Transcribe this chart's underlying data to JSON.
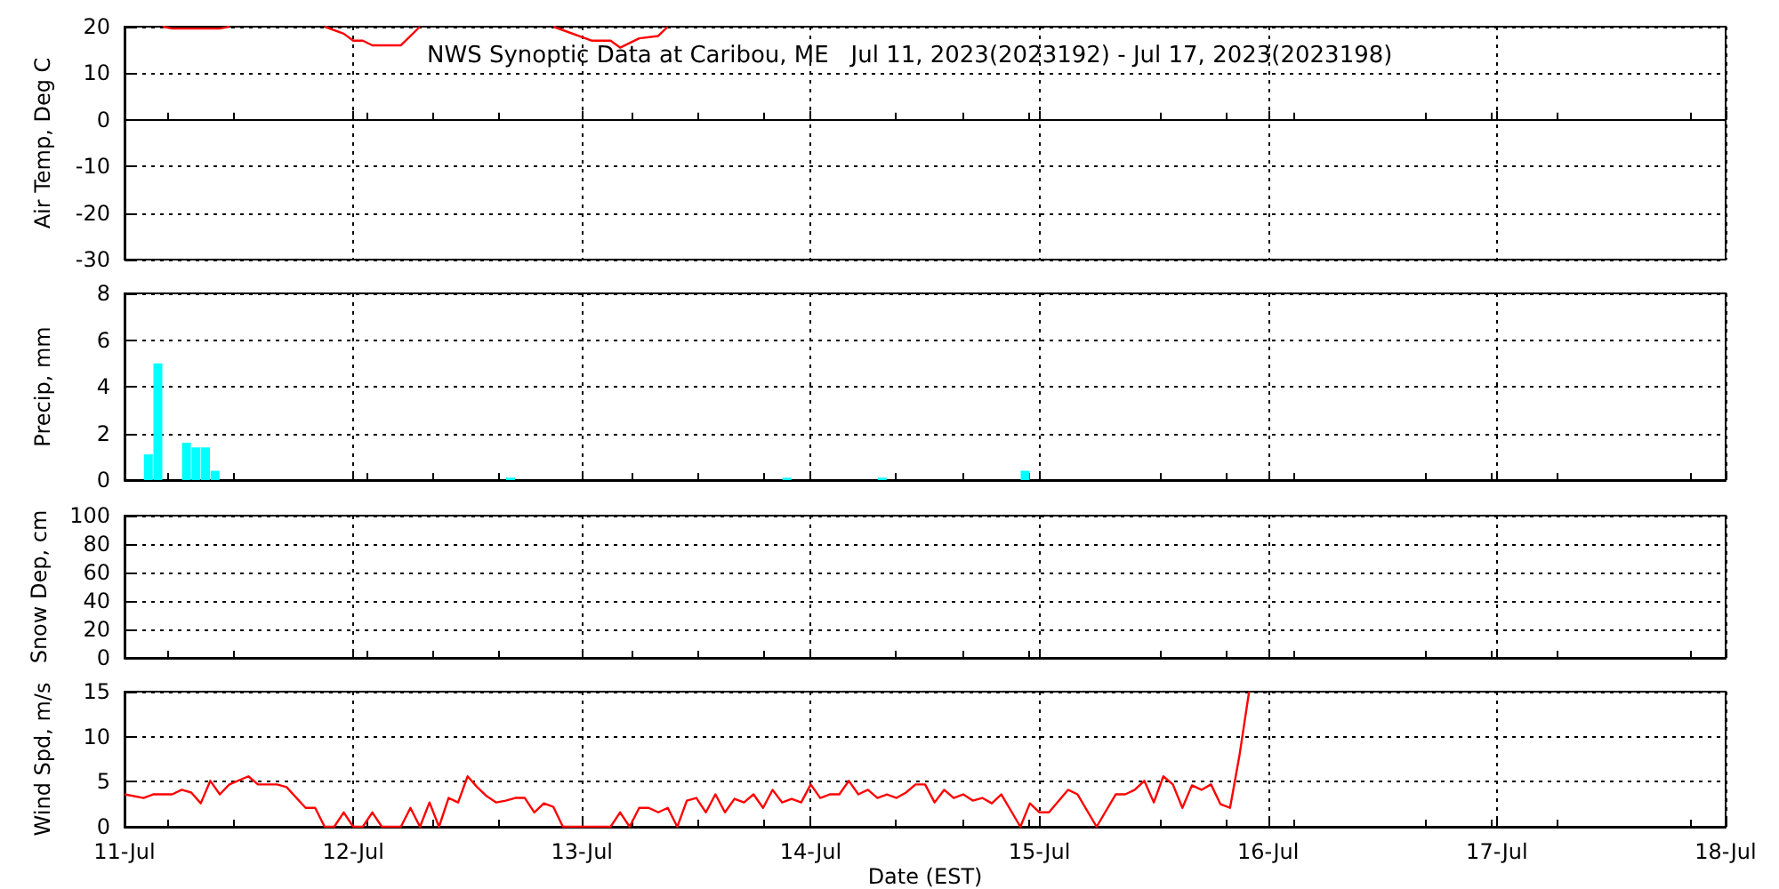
{
  "chart_data": [
    {
      "type": "line",
      "title": "NWS Synoptic Data at Caribou, ME   Jul 11, 2023(2023192) - Jul 17, 2023(2023198)",
      "ylabel": "Air Temp, Deg C",
      "ylim": [
        -30,
        20
      ],
      "yticks": [
        -30,
        -20,
        -10,
        0,
        10,
        20
      ],
      "xlim": [
        "2023-07-11",
        "2023-07-18"
      ],
      "xticks": [
        {
          "value": "2023-07-11",
          "label": null
        },
        {
          "value": "2023-07-12",
          "label": null
        },
        {
          "value": "2023-07-13",
          "label": null
        },
        {
          "value": "2023-07-14",
          "label": null
        },
        {
          "value": "2023-07-15",
          "label": null
        },
        {
          "value": "2023-07-16",
          "label": null
        },
        {
          "value": "2023-07-17",
          "label": null
        },
        {
          "value": "2023-07-18",
          "label": null
        }
      ],
      "grid": true,
      "tick_labels": "y",
      "series": [
        {
          "color": "#ff0000",
          "x": [
            "2023-07-11T04:00",
            "2023-07-11T05:00",
            "2023-07-11T10:00",
            "2023-07-11T11:00",
            "2023-07-11T16:00",
            "2023-07-11T21:00",
            "2023-07-11T23:00",
            "2023-07-12T00:00",
            "2023-07-12T01:00",
            "2023-07-12T02:00",
            "2023-07-12T05:00",
            "2023-07-12T07:00",
            "2023-07-12T14:00",
            "2023-07-12T21:00",
            "2023-07-13T01:00",
            "2023-07-13T03:00",
            "2023-07-13T04:00",
            "2023-07-13T06:00",
            "2023-07-13T08:00",
            "2023-07-13T09:00"
          ],
          "values": [
            20,
            19.6,
            19.6,
            20,
            null,
            20,
            18.5,
            17,
            17,
            16,
            16,
            20,
            null,
            20,
            17,
            17,
            15.5,
            17.5,
            18,
            20
          ]
        }
      ]
    },
    {
      "type": "bar",
      "ylabel": "Precip, mm",
      "ylim": [
        0,
        8
      ],
      "yticks": [
        0,
        2,
        4,
        6,
        8
      ],
      "xlim": [
        "2023-07-11",
        "2023-07-18"
      ],
      "xticks": [
        {
          "value": "2023-07-11",
          "label": null
        },
        {
          "value": "2023-07-12",
          "label": null
        },
        {
          "value": "2023-07-13",
          "label": null
        },
        {
          "value": "2023-07-14",
          "label": null
        },
        {
          "value": "2023-07-15",
          "label": null
        },
        {
          "value": "2023-07-16",
          "label": null
        },
        {
          "value": "2023-07-17",
          "label": null
        },
        {
          "value": "2023-07-18",
          "label": null
        }
      ],
      "grid": true,
      "tick_labels": "y",
      "series": [
        {
          "color": "#00ffff",
          "x": [
            "2023-07-11T02:30",
            "2023-07-11T03:30",
            "2023-07-11T06:30",
            "2023-07-11T07:30",
            "2023-07-11T08:30",
            "2023-07-11T09:30",
            "2023-07-12T16:30",
            "2023-07-13T21:30",
            "2023-07-14T07:30",
            "2023-07-14T21:30",
            "2023-07-14T22:30"
          ],
          "values": [
            1.1,
            5.0,
            1.6,
            1.4,
            1.4,
            0.4,
            0.1,
            0.1,
            0.1,
            null,
            0.4
          ]
        }
      ]
    },
    {
      "type": "line",
      "ylabel": "Snow Dep, cm",
      "ylim": [
        0,
        100
      ],
      "yticks": [
        0,
        20,
        40,
        60,
        80,
        100
      ],
      "xlim": [
        "2023-07-11",
        "2023-07-18"
      ],
      "xticks": [
        {
          "value": "2023-07-11",
          "label": null
        },
        {
          "value": "2023-07-12",
          "label": null
        },
        {
          "value": "2023-07-13",
          "label": null
        },
        {
          "value": "2023-07-14",
          "label": null
        },
        {
          "value": "2023-07-15",
          "label": null
        },
        {
          "value": "2023-07-16",
          "label": null
        },
        {
          "value": "2023-07-17",
          "label": null
        },
        {
          "value": "2023-07-18",
          "label": null
        }
      ],
      "grid": true,
      "tick_labels": "y"
    },
    {
      "type": "line",
      "ylabel": "Wind Spd, m/s",
      "xlabel": "Date (EST)",
      "ylim": [
        0,
        15
      ],
      "yticks": [
        0,
        5,
        10,
        15
      ],
      "xlim": [
        "2023-07-11",
        "2023-07-18"
      ],
      "xticks": [
        {
          "value": "2023-07-11",
          "label": "11-Jul"
        },
        {
          "value": "2023-07-12",
          "label": "12-Jul"
        },
        {
          "value": "2023-07-13",
          "label": "13-Jul"
        },
        {
          "value": "2023-07-14",
          "label": "14-Jul"
        },
        {
          "value": "2023-07-15",
          "label": "15-Jul"
        },
        {
          "value": "2023-07-16",
          "label": "16-Jul"
        },
        {
          "value": "2023-07-17",
          "label": "17-Jul"
        },
        {
          "value": "2023-07-18",
          "label": "18-Jul"
        }
      ],
      "grid": true,
      "series": [
        {
          "color": "#ff0000",
          "x": [
            "2023-07-11T00:00",
            "2023-07-11T02:00",
            "2023-07-11T03:00",
            "2023-07-11T05:00",
            "2023-07-11T06:00",
            "2023-07-11T07:00",
            "2023-07-11T08:00",
            "2023-07-11T09:00",
            "2023-07-11T10:00",
            "2023-07-11T11:00",
            "2023-07-11T13:00",
            "2023-07-11T14:00",
            "2023-07-11T16:00",
            "2023-07-11T17:00",
            "2023-07-11T19:00",
            "2023-07-11T20:00",
            "2023-07-11T21:00",
            "2023-07-11T22:00",
            "2023-07-11T23:00",
            "2023-07-12T00:00",
            "2023-07-12T01:00",
            "2023-07-12T02:00",
            "2023-07-12T03:00",
            "2023-07-12T05:00",
            "2023-07-12T06:00",
            "2023-07-12T07:00",
            "2023-07-12T08:00",
            "2023-07-12T09:00",
            "2023-07-12T10:00",
            "2023-07-12T11:00",
            "2023-07-12T12:00",
            "2023-07-12T13:00",
            "2023-07-12T14:00",
            "2023-07-12T15:00",
            "2023-07-12T16:00",
            "2023-07-12T17:00",
            "2023-07-12T18:00",
            "2023-07-12T19:00",
            "2023-07-12T20:00",
            "2023-07-12T21:00",
            "2023-07-12T22:00",
            "2023-07-13T00:00",
            "2023-07-13T03:00",
            "2023-07-13T04:00",
            "2023-07-13T05:00",
            "2023-07-13T06:00",
            "2023-07-13T07:00",
            "2023-07-13T08:00",
            "2023-07-13T09:00",
            "2023-07-13T10:00",
            "2023-07-13T11:00",
            "2023-07-13T12:00",
            "2023-07-13T13:00",
            "2023-07-13T14:00",
            "2023-07-13T15:00",
            "2023-07-13T16:00",
            "2023-07-13T17:00",
            "2023-07-13T18:00",
            "2023-07-13T19:00",
            "2023-07-13T20:00",
            "2023-07-13T21:00",
            "2023-07-13T22:00",
            "2023-07-13T23:00",
            "2023-07-14T00:00",
            "2023-07-14T01:00",
            "2023-07-14T02:00",
            "2023-07-14T03:00",
            "2023-07-14T04:00",
            "2023-07-14T05:00",
            "2023-07-14T06:00",
            "2023-07-14T07:00",
            "2023-07-14T08:00",
            "2023-07-14T09:00",
            "2023-07-14T10:00",
            "2023-07-14T11:00",
            "2023-07-14T12:00",
            "2023-07-14T13:00",
            "2023-07-14T14:00",
            "2023-07-14T15:00",
            "2023-07-14T16:00",
            "2023-07-14T17:00",
            "2023-07-14T18:00",
            "2023-07-14T19:00",
            "2023-07-14T20:00",
            "2023-07-14T21:00",
            "2023-07-14T22:00",
            "2023-07-14T23:00",
            "2023-07-15T00:00",
            "2023-07-15T01:00",
            "2023-07-15T03:00",
            "2023-07-15T04:00",
            "2023-07-15T06:00",
            "2023-07-15T08:00",
            "2023-07-15T09:00",
            "2023-07-15T10:00",
            "2023-07-15T11:00",
            "2023-07-15T12:00",
            "2023-07-15T13:00",
            "2023-07-15T14:00",
            "2023-07-15T15:00",
            "2023-07-15T16:00",
            "2023-07-15T17:00",
            "2023-07-15T18:00",
            "2023-07-15T19:00",
            "2023-07-15T20:00",
            "2023-07-15T21:00",
            "2023-07-15T22:00"
          ],
          "values": [
            3.6,
            3.2,
            3.6,
            3.6,
            4.1,
            3.8,
            2.6,
            5.1,
            3.6,
            4.7,
            5.6,
            4.7,
            4.7,
            4.4,
            2.1,
            2.1,
            0,
            0,
            1.6,
            0,
            0,
            1.6,
            0,
            0,
            2.1,
            0,
            2.7,
            0,
            3.2,
            2.7,
            5.6,
            4.4,
            3.4,
            2.7,
            2.9,
            3.2,
            3.2,
            1.6,
            2.6,
            2.2,
            0,
            0,
            0,
            1.6,
            0,
            2.1,
            2.1,
            1.6,
            2.1,
            0,
            2.9,
            3.2,
            1.6,
            3.6,
            1.6,
            3.1,
            2.7,
            3.6,
            2.1,
            4.1,
            2.7,
            3.1,
            2.7,
            4.7,
            3.2,
            3.6,
            3.6,
            5.1,
            3.6,
            4.1,
            3.2,
            3.6,
            3.2,
            3.8,
            4.7,
            4.7,
            2.7,
            4.1,
            3.2,
            3.6,
            2.9,
            3.2,
            2.6,
            3.6,
            1.8,
            0,
            2.6,
            1.6,
            1.6,
            4.1,
            3.6,
            0,
            3.6,
            3.6,
            4.1,
            5.1,
            2.7,
            5.6,
            4.7,
            2.1,
            4.6,
            4.1,
            4.7,
            2.5,
            2.1,
            8,
            15
          ]
        }
      ]
    }
  ]
}
